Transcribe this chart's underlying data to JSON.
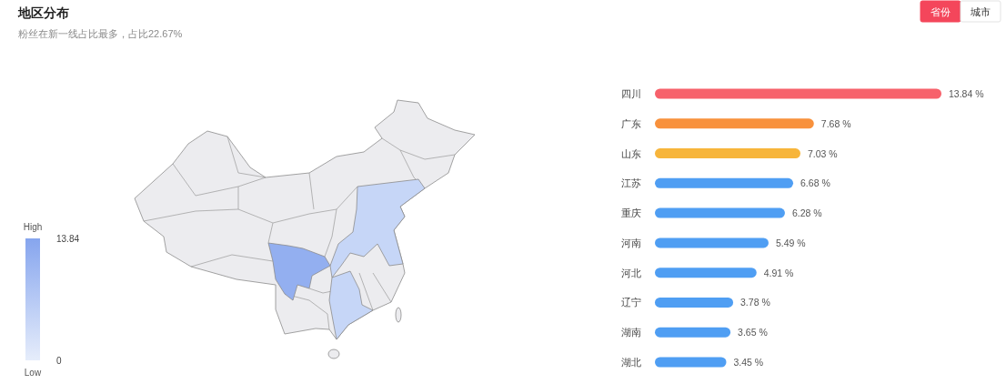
{
  "chart_data": [
    {
      "type": "other",
      "title": "地区分布",
      "subtitle": "粉丝在新一线占比最多，占比22.67%",
      "annotations": [
        "High",
        "13.84",
        "0",
        "Low"
      ]
    },
    {
      "type": "bar",
      "orientation": "horizontal",
      "categories": [
        "四川",
        "广东",
        "山东",
        "江苏",
        "重庆",
        "河南",
        "河北",
        "辽宁",
        "湖南",
        "湖北"
      ],
      "values": [
        13.84,
        7.68,
        7.03,
        6.68,
        6.28,
        5.49,
        4.91,
        3.78,
        3.65,
        3.45
      ],
      "colors": [
        "#f7616b",
        "#f8913c",
        "#f7b53b",
        "#4f9ef3",
        "#4f9ef3",
        "#4f9ef3",
        "#4f9ef3",
        "#4f9ef3",
        "#4f9ef3",
        "#4f9ef3"
      ],
      "value_labels": [
        "13.84 %",
        "7.68 %",
        "7.03 %",
        "6.68 %",
        "6.28 %",
        "5.49 %",
        "4.91 %",
        "3.78 %",
        "3.65 %",
        "3.45 %"
      ],
      "annotations": [
        "省份",
        "城市"
      ]
    }
  ]
}
